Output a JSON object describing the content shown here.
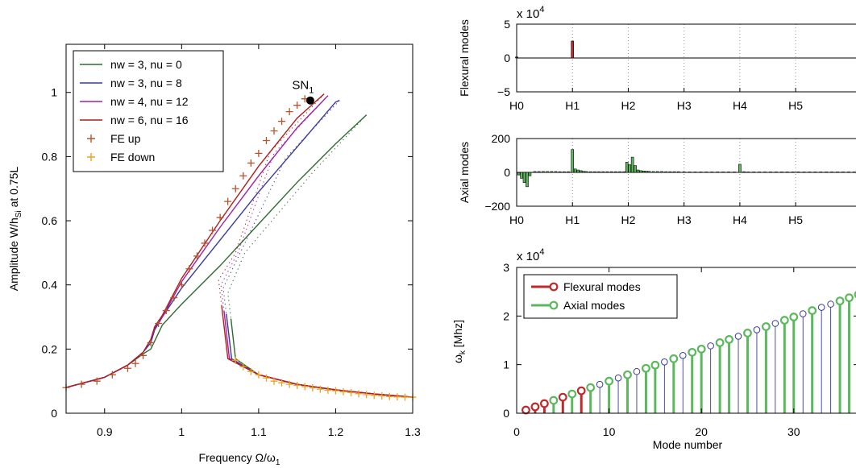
{
  "chart_data": [
    {
      "type": "line",
      "xlabel": "Frequency Ω/ω",
      "xlabel_sub": "1",
      "ylabel": "Amplitude W/h",
      "ylabel_sub": "Si",
      "ylabel_suffix": " at 0.75L",
      "xlim": [
        0.85,
        1.3
      ],
      "ylim": [
        0,
        1.15
      ],
      "xticks": [
        0.9,
        1,
        1.1,
        1.2,
        1.3
      ],
      "xtick_labels": [
        "0.9",
        "1",
        "1.1",
        "1.2",
        "1.3"
      ],
      "yticks": [
        0,
        0.2,
        0.4,
        0.6,
        0.8,
        1
      ],
      "ytick_labels": [
        "0",
        "0.2",
        "0.4",
        "0.6",
        "0.8",
        "1"
      ],
      "grid": false,
      "legend_position": "top-left",
      "annotation": {
        "text": "SN",
        "sub": "1",
        "x": 1.167,
        "y": 0.975
      },
      "series": [
        {
          "name": "nw = 3, nu = 0",
          "color": "#2e6b2e",
          "peak": [
            1.24,
            0.93
          ],
          "upper": [
            [
              0.85,
              0.08
            ],
            [
              0.9,
              0.112
            ],
            [
              0.93,
              0.15
            ],
            [
              0.95,
              0.185
            ],
            [
              0.96,
              0.2
            ],
            [
              0.965,
              0.225
            ],
            [
              0.975,
              0.275
            ],
            [
              1.0,
              0.34
            ],
            [
              1.05,
              0.46
            ],
            [
              1.1,
              0.59
            ],
            [
              1.15,
              0.72
            ],
            [
              1.2,
              0.84
            ],
            [
              1.24,
              0.93
            ]
          ],
          "lower": [
            [
              1.064,
              0.295
            ],
            [
              1.07,
              0.17
            ],
            [
              1.1,
              0.12
            ],
            [
              1.15,
              0.09
            ],
            [
              1.2,
              0.073
            ],
            [
              1.25,
              0.06
            ],
            [
              1.3,
              0.05
            ]
          ]
        },
        {
          "name": "nw = 3, nu = 8",
          "color": "#3a3a9c",
          "peak": [
            1.205,
            0.975
          ],
          "upper": [
            [
              0.85,
              0.08
            ],
            [
              0.9,
              0.112
            ],
            [
              0.93,
              0.15
            ],
            [
              0.95,
              0.19
            ],
            [
              0.96,
              0.22
            ],
            [
              0.965,
              0.26
            ],
            [
              0.975,
              0.3
            ],
            [
              1.0,
              0.39
            ],
            [
              1.05,
              0.54
            ],
            [
              1.1,
              0.69
            ],
            [
              1.15,
              0.83
            ],
            [
              1.2,
              0.97
            ],
            [
              1.205,
              0.975
            ]
          ],
          "lower": [
            [
              1.058,
              0.31
            ],
            [
              1.065,
              0.17
            ],
            [
              1.1,
              0.12
            ],
            [
              1.15,
              0.09
            ],
            [
              1.2,
              0.073
            ],
            [
              1.25,
              0.06
            ],
            [
              1.3,
              0.05
            ]
          ]
        },
        {
          "name": "nw = 4, nu = 12",
          "color": "#a020a0",
          "peak": [
            1.19,
            0.99
          ],
          "upper": [
            [
              0.85,
              0.08
            ],
            [
              0.9,
              0.112
            ],
            [
              0.93,
              0.15
            ],
            [
              0.95,
              0.19
            ],
            [
              0.96,
              0.23
            ],
            [
              0.965,
              0.265
            ],
            [
              0.975,
              0.3
            ],
            [
              1.0,
              0.41
            ],
            [
              1.05,
              0.58
            ],
            [
              1.1,
              0.74
            ],
            [
              1.15,
              0.89
            ],
            [
              1.19,
              0.99
            ]
          ],
          "lower": [
            [
              1.055,
              0.32
            ],
            [
              1.062,
              0.17
            ],
            [
              1.1,
              0.12
            ],
            [
              1.15,
              0.09
            ],
            [
              1.2,
              0.073
            ],
            [
              1.25,
              0.06
            ],
            [
              1.3,
              0.05
            ]
          ]
        },
        {
          "name": "nw = 6, nu = 16",
          "color": "#b01c1c",
          "peak": [
            1.185,
            0.995
          ],
          "upper": [
            [
              0.85,
              0.08
            ],
            [
              0.9,
              0.112
            ],
            [
              0.93,
              0.15
            ],
            [
              0.95,
              0.19
            ],
            [
              0.96,
              0.23
            ],
            [
              0.965,
              0.27
            ],
            [
              0.975,
              0.305
            ],
            [
              1.0,
              0.42
            ],
            [
              1.05,
              0.6
            ],
            [
              1.1,
              0.77
            ],
            [
              1.15,
              0.92
            ],
            [
              1.185,
              0.995
            ]
          ],
          "lower": [
            [
              1.052,
              0.335
            ],
            [
              1.06,
              0.17
            ],
            [
              1.1,
              0.12
            ],
            [
              1.15,
              0.09
            ],
            [
              1.2,
              0.073
            ],
            [
              1.25,
              0.06
            ],
            [
              1.3,
              0.05
            ]
          ]
        },
        {
          "name": "FE up",
          "color": "#b5532e",
          "marker": "+",
          "points": [
            [
              0.85,
              0.08
            ],
            [
              0.87,
              0.09
            ],
            [
              0.89,
              0.1
            ],
            [
              0.91,
              0.12
            ],
            [
              0.93,
              0.14
            ],
            [
              0.94,
              0.155
            ],
            [
              0.95,
              0.18
            ],
            [
              0.96,
              0.22
            ],
            [
              0.97,
              0.28
            ],
            [
              0.98,
              0.32
            ],
            [
              0.99,
              0.36
            ],
            [
              1.0,
              0.4
            ],
            [
              1.01,
              0.45
            ],
            [
              1.02,
              0.49
            ],
            [
              1.03,
              0.53
            ],
            [
              1.04,
              0.57
            ],
            [
              1.05,
              0.61
            ],
            [
              1.06,
              0.66
            ],
            [
              1.07,
              0.7
            ],
            [
              1.08,
              0.74
            ],
            [
              1.09,
              0.78
            ],
            [
              1.1,
              0.81
            ],
            [
              1.11,
              0.85
            ],
            [
              1.12,
              0.88
            ],
            [
              1.13,
              0.91
            ],
            [
              1.14,
              0.94
            ],
            [
              1.15,
              0.96
            ],
            [
              1.16,
              0.98
            ]
          ]
        },
        {
          "name": "FE down",
          "color": "#f0a020",
          "marker": "+",
          "points": [
            [
              1.07,
              0.165
            ],
            [
              1.08,
              0.145
            ],
            [
              1.09,
              0.13
            ],
            [
              1.1,
              0.12
            ],
            [
              1.11,
              0.11
            ],
            [
              1.12,
              0.1
            ],
            [
              1.13,
              0.095
            ],
            [
              1.14,
              0.09
            ],
            [
              1.15,
              0.087
            ],
            [
              1.16,
              0.083
            ],
            [
              1.17,
              0.079
            ],
            [
              1.18,
              0.075
            ],
            [
              1.19,
              0.072
            ],
            [
              1.2,
              0.07
            ],
            [
              1.21,
              0.067
            ],
            [
              1.22,
              0.064
            ],
            [
              1.23,
              0.061
            ],
            [
              1.24,
              0.058
            ],
            [
              1.25,
              0.056
            ],
            [
              1.26,
              0.054
            ],
            [
              1.27,
              0.052
            ],
            [
              1.28,
              0.051
            ],
            [
              1.29,
              0.05
            ],
            [
              1.3,
              0.05
            ]
          ]
        }
      ],
      "legend": [
        {
          "label": "nw = 3, nu = 0",
          "color": "#2e6b2e",
          "kind": "line"
        },
        {
          "label": "nw = 3, nu = 8",
          "color": "#3a3a9c",
          "kind": "line"
        },
        {
          "label": "nw = 4, nu = 12",
          "color": "#a020a0",
          "kind": "line"
        },
        {
          "label": "nw = 6, nu = 16",
          "color": "#b01c1c",
          "kind": "line"
        },
        {
          "label": "FE up",
          "color": "#b5532e",
          "kind": "plus"
        },
        {
          "label": "FE down",
          "color": "#f0a020",
          "kind": "plus"
        }
      ]
    },
    {
      "type": "bar",
      "ylabel": "Flexural modes",
      "multiplier": "x 10",
      "multiplier_exp": "4",
      "ylim": [
        -5,
        5
      ],
      "yticks": [
        -5,
        0,
        5
      ],
      "ytick_labels": [
        "−5",
        "0",
        "5"
      ],
      "x_range": [
        0,
        24.5
      ],
      "categories": [
        "H0",
        "H1",
        "H2",
        "H3",
        "H4",
        "H5"
      ],
      "category_positions": [
        0,
        4,
        8,
        12,
        16,
        20
      ],
      "bar_color": "#c0282a",
      "bars": [
        [
          0,
          0.15
        ],
        [
          4,
          2.5
        ]
      ]
    },
    {
      "type": "bar",
      "ylabel": "Axial modes",
      "ylim": [
        -200,
        200
      ],
      "yticks": [
        -200,
        0,
        200
      ],
      "ytick_labels": [
        "−200",
        "0",
        "200"
      ],
      "x_range": [
        0,
        24.5
      ],
      "categories": [
        "H0",
        "H1",
        "H2",
        "H3",
        "H4",
        "H5"
      ],
      "category_positions": [
        0,
        4,
        8,
        12,
        16,
        20
      ],
      "bar_color": "#5cb85c",
      "bars": [
        [
          0.15,
          -15
        ],
        [
          0.35,
          -35
        ],
        [
          0.55,
          -60
        ],
        [
          0.75,
          -85
        ],
        [
          0.95,
          -20
        ],
        [
          1.3,
          5
        ],
        [
          1.6,
          5
        ],
        [
          1.9,
          5
        ],
        [
          2.2,
          5
        ],
        [
          2.5,
          5
        ],
        [
          2.8,
          5
        ],
        [
          3.1,
          4
        ],
        [
          3.4,
          4
        ],
        [
          3.7,
          4
        ],
        [
          4.0,
          135
        ],
        [
          4.2,
          20
        ],
        [
          4.4,
          14
        ],
        [
          4.6,
          10
        ],
        [
          4.8,
          6
        ],
        [
          5.0,
          5
        ],
        [
          5.3,
          4
        ],
        [
          5.6,
          4
        ],
        [
          5.9,
          4
        ],
        [
          6.2,
          4
        ],
        [
          6.5,
          4
        ],
        [
          6.8,
          4
        ],
        [
          7.1,
          4
        ],
        [
          7.4,
          4
        ],
        [
          7.7,
          4
        ],
        [
          7.9,
          60
        ],
        [
          8.1,
          45
        ],
        [
          8.3,
          90
        ],
        [
          8.5,
          40
        ],
        [
          8.7,
          14
        ],
        [
          8.9,
          10
        ],
        [
          9.1,
          8
        ],
        [
          9.3,
          7
        ],
        [
          9.5,
          6
        ],
        [
          9.8,
          5
        ],
        [
          10.1,
          5
        ],
        [
          10.4,
          5
        ],
        [
          10.7,
          4
        ],
        [
          11.0,
          4
        ],
        [
          11.3,
          4
        ],
        [
          11.6,
          4
        ],
        [
          12.0,
          3
        ],
        [
          12.4,
          3
        ],
        [
          12.8,
          3
        ],
        [
          13.2,
          3
        ],
        [
          13.6,
          3
        ],
        [
          14.0,
          3
        ],
        [
          14.4,
          3
        ],
        [
          14.8,
          3
        ],
        [
          15.2,
          3
        ],
        [
          15.6,
          3
        ],
        [
          16.0,
          48
        ],
        [
          16.3,
          4
        ],
        [
          16.6,
          3
        ],
        [
          17.0,
          3
        ],
        [
          17.4,
          3
        ],
        [
          17.8,
          3
        ],
        [
          18.2,
          3
        ],
        [
          18.6,
          3
        ],
        [
          19.0,
          3
        ],
        [
          19.4,
          3
        ],
        [
          19.8,
          3
        ],
        [
          20.2,
          3
        ],
        [
          20.6,
          3
        ],
        [
          21.0,
          3
        ],
        [
          21.4,
          3
        ],
        [
          21.8,
          3
        ],
        [
          22.2,
          3
        ],
        [
          22.6,
          3
        ],
        [
          23.0,
          3
        ],
        [
          23.4,
          3
        ],
        [
          23.8,
          3
        ],
        [
          24.2,
          3
        ]
      ]
    },
    {
      "type": "stem",
      "xlabel": "Mode number",
      "ylabel": "ω",
      "ylabel_sub": "k",
      "ylabel_suffix": " [Mhz]",
      "multiplier": "x 10",
      "multiplier_exp": "4",
      "xlim": [
        0,
        37
      ],
      "ylim": [
        0,
        3
      ],
      "xticks": [
        0,
        10,
        20,
        30
      ],
      "xtick_labels": [
        "0",
        "10",
        "20",
        "30"
      ],
      "yticks": [
        0,
        1,
        2,
        3
      ],
      "ytick_labels": [
        "0",
        "1",
        "2",
        "3"
      ],
      "legend_position": "top-left",
      "legend": [
        {
          "label": "Flexural modes",
          "color": "#c0282a"
        },
        {
          "label": "Axial modes",
          "color": "#5cb85c"
        }
      ],
      "other_color": "#3a3a9c",
      "mode_step": 0.066,
      "flexural_modes": [
        1,
        2,
        3,
        5,
        7
      ],
      "axial_modes": [
        4,
        6,
        8,
        10,
        12,
        14,
        15,
        17,
        19,
        20,
        22,
        23,
        25,
        27,
        29,
        30,
        32,
        35,
        36,
        37
      ]
    }
  ]
}
